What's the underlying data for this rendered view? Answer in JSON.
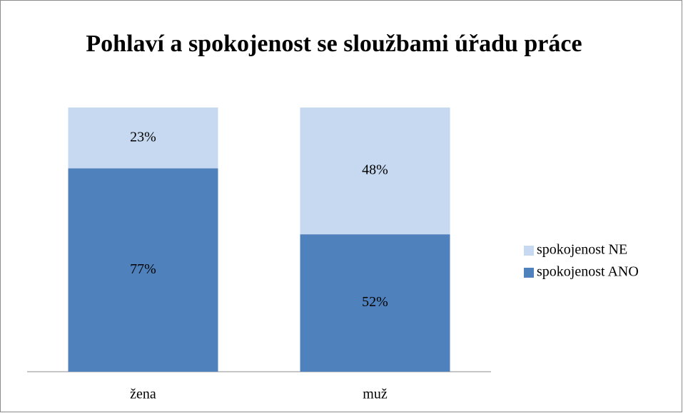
{
  "chart_data": {
    "type": "stacked_bar",
    "title": "Pohlaví a spokojenost se sloužbami úřadu práce",
    "categories": [
      "žena",
      "muž"
    ],
    "series": [
      {
        "name": "spokojenost ANO",
        "color": "#4f81bd",
        "values": [
          77,
          52
        ],
        "value_labels": [
          "77%",
          "52%"
        ]
      },
      {
        "name": "spokojenost NE",
        "color": "#c6d9f0",
        "values": [
          23,
          48
        ],
        "value_labels": [
          "23%",
          "48%"
        ]
      }
    ],
    "ylim": [
      0,
      100
    ],
    "legend": "right"
  }
}
